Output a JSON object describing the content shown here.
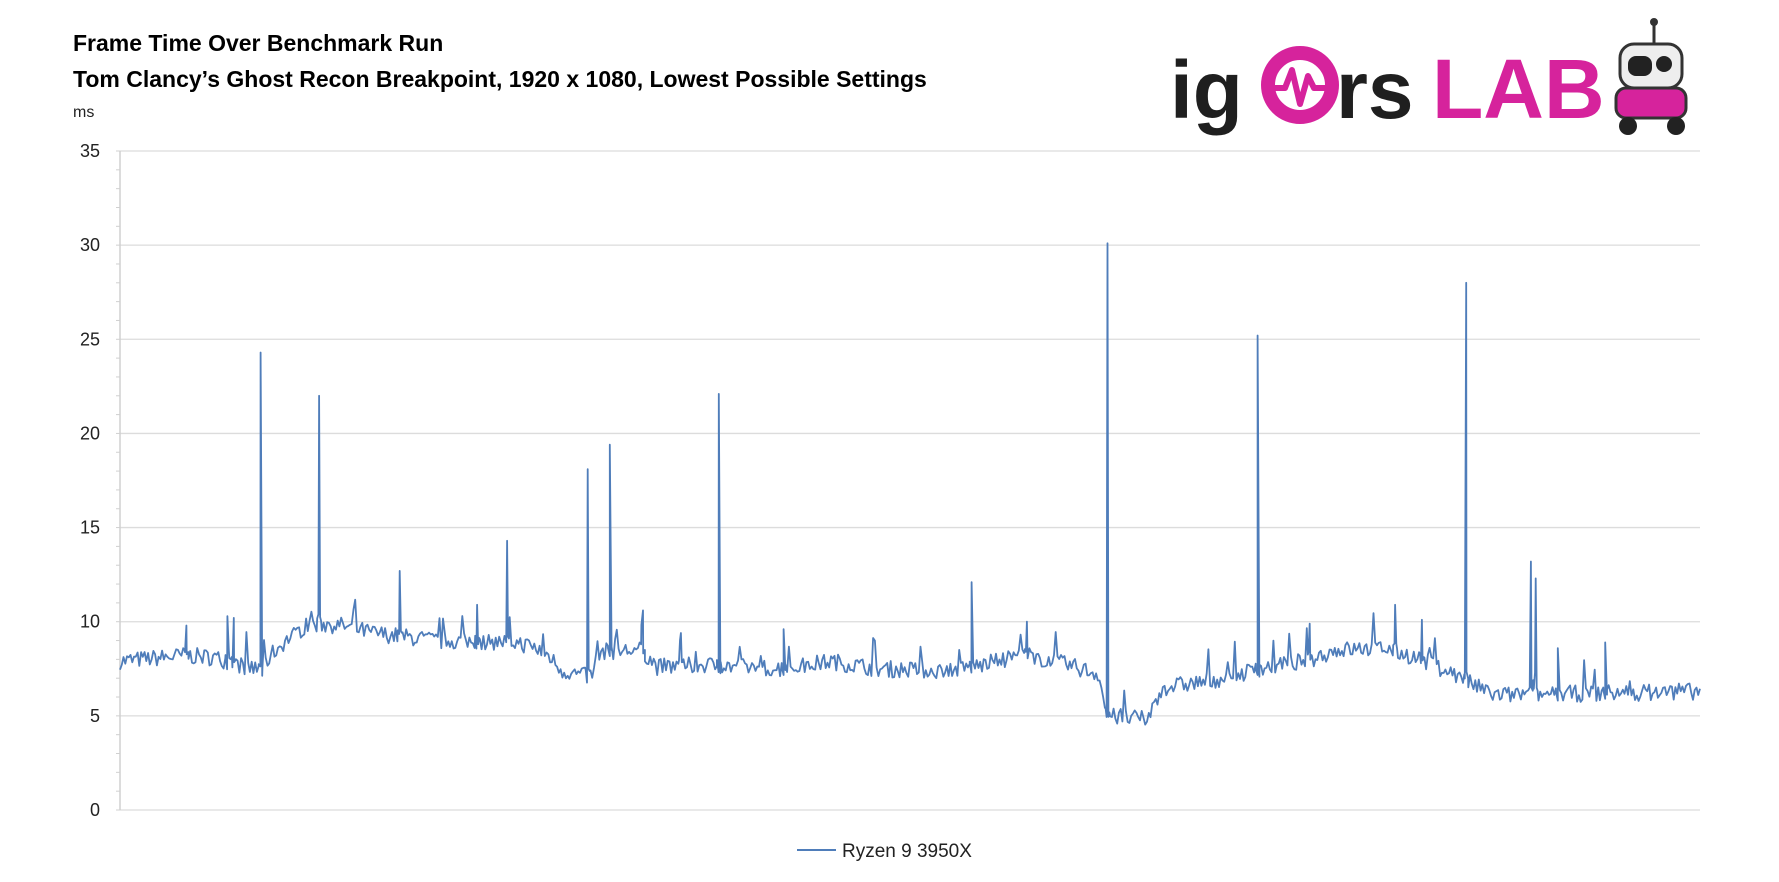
{
  "chart_data": {
    "type": "line",
    "title": "Frame Time Over Benchmark Run",
    "subtitle": "Tom Clancy’s Ghost Recon Breakpoint, 1920 x 1080, Lowest Possible Settings",
    "ylabel": "ms",
    "xlabel": "",
    "ylim": [
      0,
      35
    ],
    "yticks": [
      0,
      5,
      10,
      15,
      20,
      25,
      30,
      35
    ],
    "grid": true,
    "legend_position": "bottom-center",
    "x_range": [
      0,
      100
    ],
    "baseline": [
      [
        0,
        7.9
      ],
      [
        4,
        8.2
      ],
      [
        6,
        8.1
      ],
      [
        8,
        7.6
      ],
      [
        9,
        7.4
      ],
      [
        9.5,
        8.2
      ],
      [
        10.5,
        9.0
      ],
      [
        12,
        9.9
      ],
      [
        14,
        9.8
      ],
      [
        16,
        9.4
      ],
      [
        20,
        9.0
      ],
      [
        25,
        8.9
      ],
      [
        26,
        8.7
      ],
      [
        27,
        8.3
      ],
      [
        28,
        7.4
      ],
      [
        30,
        7.3
      ],
      [
        29.5,
        7.1
      ],
      [
        30.2,
        8.4
      ],
      [
        33,
        8.5
      ],
      [
        34,
        7.6
      ],
      [
        37,
        7.7
      ],
      [
        42,
        7.5
      ],
      [
        45,
        7.9
      ],
      [
        48,
        7.5
      ],
      [
        52,
        7.4
      ],
      [
        54,
        7.6
      ],
      [
        56,
        8.0
      ],
      [
        57,
        8.3
      ],
      [
        60,
        7.7
      ],
      [
        62,
        7.2
      ],
      [
        62.4,
        5.0
      ],
      [
        65,
        4.8
      ],
      [
        66,
        6.5
      ],
      [
        70,
        7.0
      ],
      [
        72,
        7.5
      ],
      [
        75,
        7.9
      ],
      [
        77,
        8.5
      ],
      [
        80,
        8.6
      ],
      [
        82,
        8.1
      ],
      [
        84,
        7.4
      ],
      [
        86,
        6.5
      ],
      [
        87,
        6.1
      ],
      [
        100,
        6.3
      ]
    ],
    "spikes": [
      [
        4.2,
        9.8
      ],
      [
        6.8,
        10.3
      ],
      [
        7.2,
        10.2
      ],
      [
        8.9,
        24.3
      ],
      [
        12.6,
        22.0
      ],
      [
        17.7,
        12.7
      ],
      [
        22.6,
        10.9
      ],
      [
        24.5,
        14.3
      ],
      [
        29.6,
        18.1
      ],
      [
        31.0,
        19.4
      ],
      [
        33.1,
        10.6
      ],
      [
        35.5,
        9.4
      ],
      [
        37.9,
        22.1
      ],
      [
        42.0,
        9.6
      ],
      [
        53.9,
        12.1
      ],
      [
        57.4,
        10.0
      ],
      [
        62.5,
        30.1
      ],
      [
        72.0,
        25.2
      ],
      [
        75.3,
        9.9
      ],
      [
        80.7,
        10.9
      ],
      [
        82.4,
        10.1
      ],
      [
        85.2,
        28.0
      ],
      [
        89.3,
        13.2
      ],
      [
        89.6,
        12.3
      ],
      [
        91.0,
        8.6
      ],
      [
        94.0,
        8.9
      ]
    ],
    "series": [
      {
        "name": "Ryzen 9 3950X",
        "color": "#4f7dba"
      }
    ]
  },
  "logo": {
    "text_left": "ig",
    "text_right": "rs",
    "text_lab": "LAB",
    "color_dark": "#1f1f1f",
    "color_magenta": "#d6239c"
  }
}
